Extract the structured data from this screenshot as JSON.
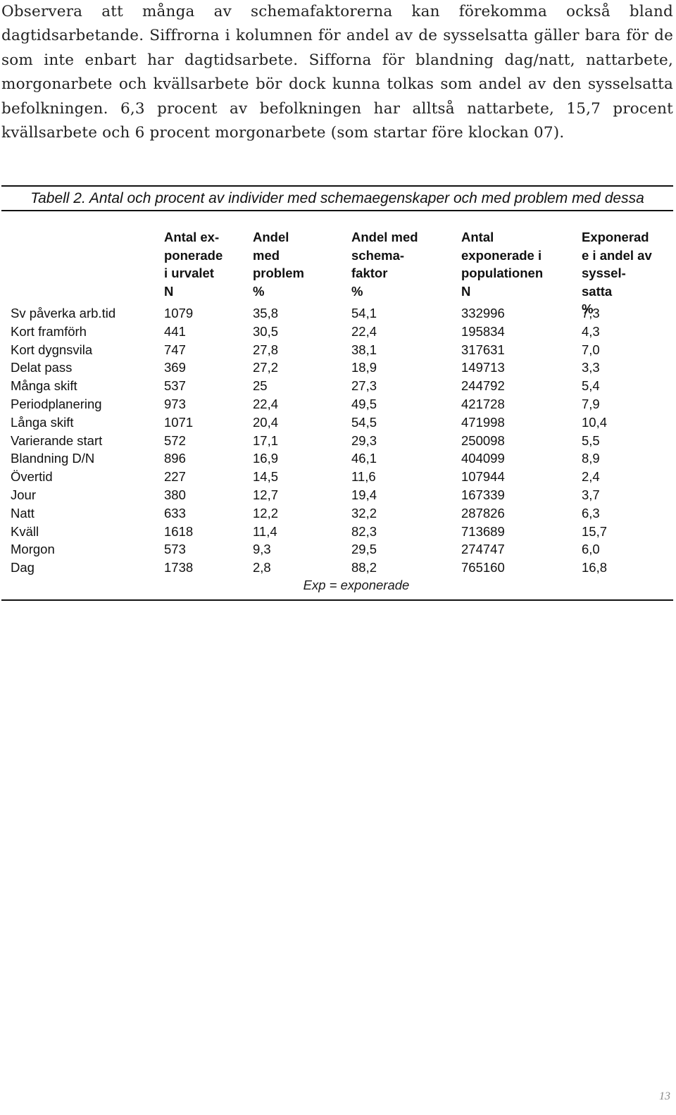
{
  "intro_text": "Observera att många av schemafaktorerna kan förekomma också bland dagtidsarbetande. Siffrorna i kolumnen för andel av de sysselsatta gäller bara för de som inte enbart har dagtidsarbete. Sifforna för blandning dag/natt, nattarbete, morgonarbete och kvällsarbete bör dock kunna tolkas som andel av den sysselsatta befolkningen. 6,3 procent av befolkningen har alltså nattarbete, 15,7 procent kvällsarbete och 6 procent morgonarbete (som startar före klockan 07).",
  "table": {
    "caption": "Tabell 2. Antal och procent av individer med schemaegenskaper och med problem med dessa",
    "headers": [
      [
        "Antal ex-",
        "ponerade",
        "i urvalet",
        "N"
      ],
      [
        "Andel",
        "med",
        "problem",
        "%"
      ],
      [
        "Andel med",
        "schema-",
        "faktor",
        "%"
      ],
      [
        "Antal",
        "exponerade i",
        "populationen",
        "N"
      ],
      [
        "Exponerad",
        "e i andel av",
        "syssel-",
        "satta",
        "%"
      ]
    ],
    "rows": [
      [
        "Sv påverka arb.tid",
        "1079",
        "35,8",
        "54,1",
        "332996",
        "7,3"
      ],
      [
        "Kort framförh",
        "441",
        "30,5",
        "22,4",
        "195834",
        "4,3"
      ],
      [
        "Kort dygnsvila",
        "747",
        "27,8",
        "38,1",
        "317631",
        "7,0"
      ],
      [
        "Delat pass",
        "369",
        "27,2",
        "18,9",
        "149713",
        "3,3"
      ],
      [
        "Många skift",
        "537",
        "25",
        "27,3",
        "244792",
        "5,4"
      ],
      [
        "Periodplanering",
        "973",
        "22,4",
        "49,5",
        "421728",
        "7,9"
      ],
      [
        "Långa skift",
        "1071",
        "20,4",
        "54,5",
        "471998",
        "10,4"
      ],
      [
        "Varierande start",
        "572",
        "17,1",
        "29,3",
        "250098",
        "5,5"
      ],
      [
        "Blandning D/N",
        "896",
        "16,9",
        "46,1",
        "404099",
        "8,9"
      ],
      [
        "Övertid",
        "227",
        "14,5",
        "11,6",
        "107944",
        "2,4"
      ],
      [
        "Jour",
        "380",
        "12,7",
        "19,4",
        "167339",
        "3,7"
      ],
      [
        "Natt",
        "633",
        "12,2",
        "32,2",
        "287826",
        "6,3"
      ],
      [
        "Kväll",
        "1618",
        "11,4",
        "82,3",
        "713689",
        "15,7"
      ],
      [
        "Morgon",
        "573",
        "9,3",
        "29,5",
        "274747",
        "6,0"
      ],
      [
        "Dag",
        "1738",
        "2,8",
        "88,2",
        "765160",
        "16,8"
      ]
    ],
    "note": "Exp = exponerade"
  },
  "page_number": "13"
}
